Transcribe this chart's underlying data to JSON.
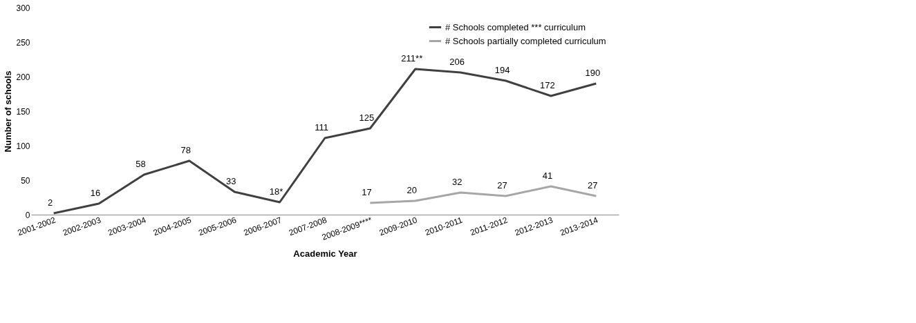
{
  "chart_data": {
    "type": "line",
    "xlabel": "Academic Year",
    "ylabel": "Number of schools",
    "categories": [
      "2001-2002",
      "2002-2003",
      "2003-2004",
      "2004-2005",
      "2005-2006",
      "2006-2007",
      "2007-2008",
      "2008-2009****",
      "2009-2010",
      "2010-2011",
      "2011-2012",
      "2012-2013",
      "2013-2014"
    ],
    "series": [
      {
        "name": "# Schools completed *** curriculum",
        "color": "#404040",
        "values": [
          2,
          16,
          58,
          78,
          33,
          18,
          111,
          125,
          211,
          206,
          194,
          172,
          190
        ],
        "value_labels": [
          "2",
          "16",
          "58",
          "78",
          "33",
          "18*",
          "111",
          "125",
          "211**",
          "206",
          "194",
          "172",
          "190"
        ]
      },
      {
        "name": "# Schools partially completed curriculum",
        "color": "#a6a6a6",
        "values": [
          null,
          null,
          null,
          null,
          null,
          null,
          null,
          17,
          20,
          32,
          27,
          41,
          27
        ],
        "value_labels": [
          null,
          null,
          null,
          null,
          null,
          null,
          null,
          "17",
          "20",
          "32",
          "27",
          "41",
          "27"
        ]
      }
    ],
    "ylim": [
      0,
      300
    ],
    "yticks": [
      0,
      50,
      100,
      150,
      200,
      250,
      300
    ],
    "grid": false,
    "legend": "top right",
    "marker": "none",
    "line_style": "solid"
  }
}
